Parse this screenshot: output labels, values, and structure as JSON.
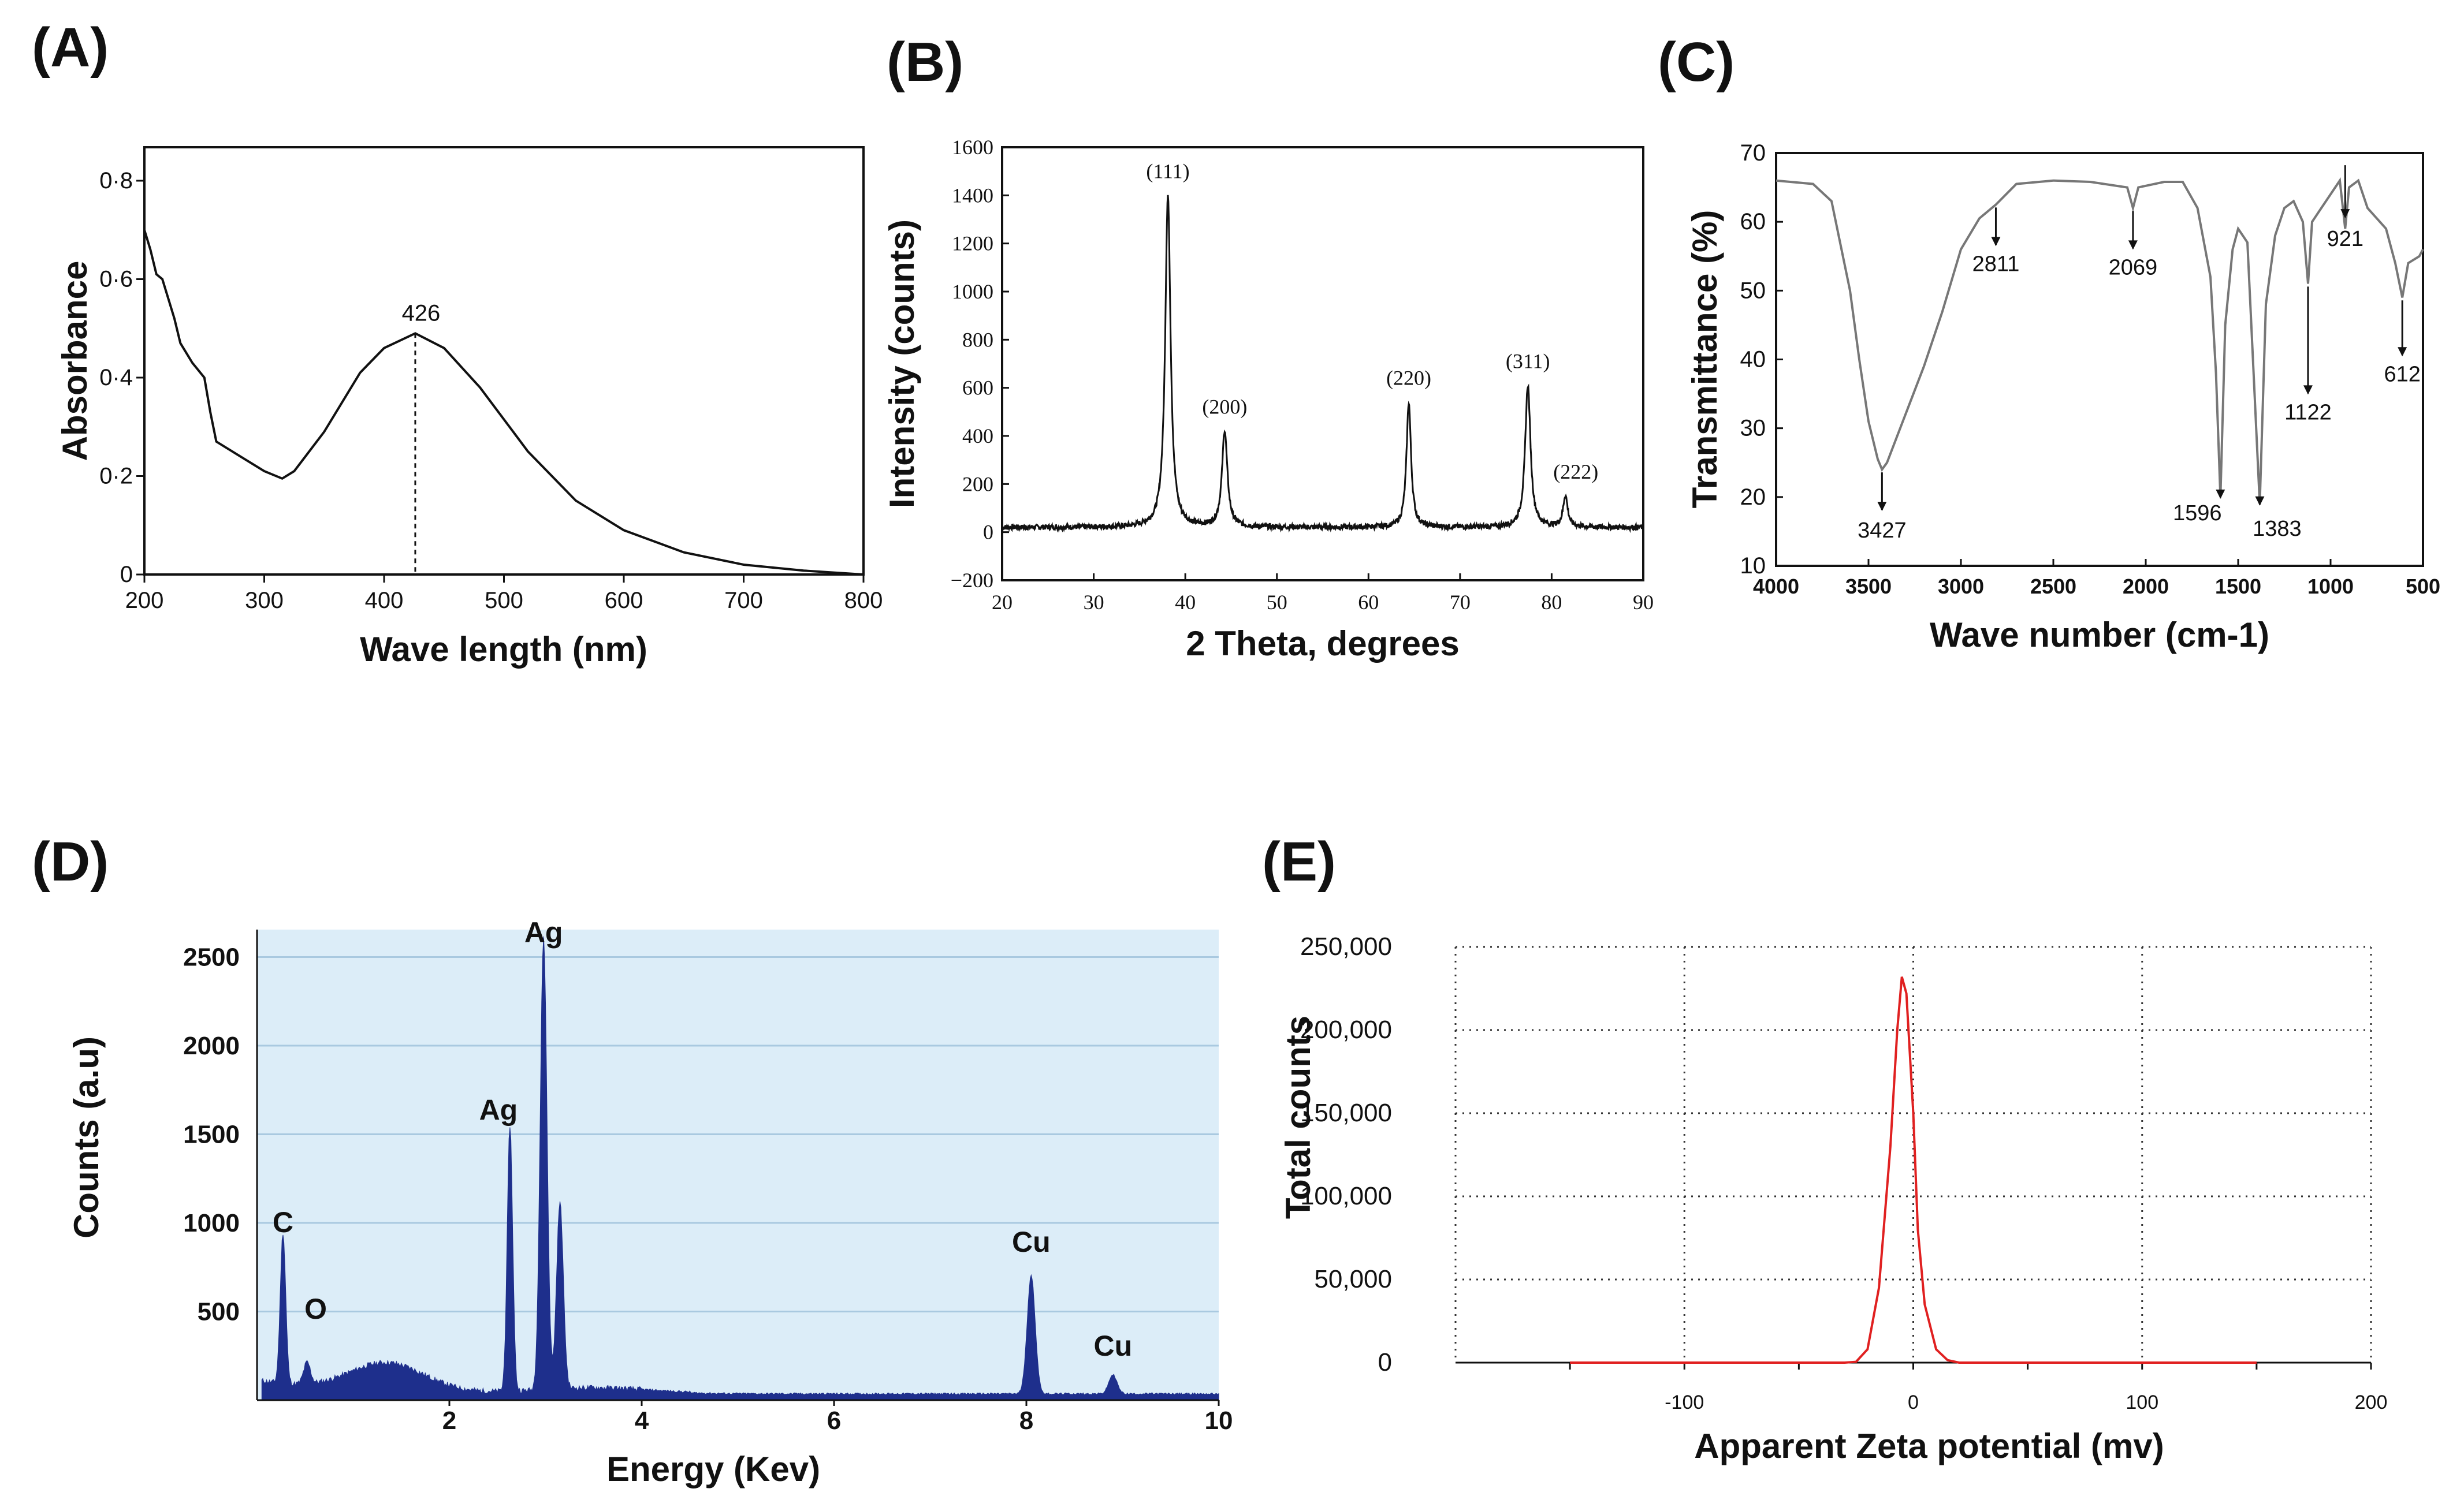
{
  "chart_data": [
    {
      "panel": "(A)",
      "type": "line",
      "xlabel": "Wave length (nm)",
      "ylabel": "Absorbance",
      "xlim": [
        200,
        800
      ],
      "ylim": [
        0,
        0.8
      ],
      "x_ticks": [
        "200",
        "300",
        "400",
        "500",
        "600",
        "700",
        "800"
      ],
      "y_ticks": [
        "0",
        "0·2",
        "0·4",
        "0·6",
        "0·8"
      ],
      "series": [
        {
          "x": [
            200,
            205,
            210,
            215,
            220,
            225,
            230,
            240,
            250,
            255,
            260,
            280,
            300,
            315,
            325,
            350,
            380,
            400,
            426,
            450,
            480,
            520,
            560,
            600,
            650,
            700,
            750,
            800
          ],
          "y": [
            0.7,
            0.66,
            0.61,
            0.6,
            0.56,
            0.52,
            0.47,
            0.43,
            0.4,
            0.33,
            0.27,
            0.24,
            0.21,
            0.195,
            0.21,
            0.29,
            0.41,
            0.46,
            0.49,
            0.46,
            0.38,
            0.25,
            0.15,
            0.09,
            0.045,
            0.02,
            0.008,
            0.0
          ]
        }
      ],
      "annotations": [
        {
          "x": 426,
          "y": 0.49,
          "label": "426"
        }
      ],
      "grid": false
    },
    {
      "panel": "(B)",
      "type": "line",
      "xlabel": "2 Theta, degrees",
      "ylabel": "Intensity (counts)",
      "xlim": [
        20,
        90
      ],
      "ylim": [
        -200,
        1600
      ],
      "x_ticks": [
        "20",
        "30",
        "40",
        "50",
        "60",
        "70",
        "80",
        "90"
      ],
      "y_ticks": [
        "−200",
        "0",
        "200",
        "400",
        "600",
        "800",
        "1000",
        "1200",
        "1400",
        "1600"
      ],
      "baseline": 20,
      "peaks": [
        {
          "x": 38.1,
          "y": 1400,
          "width": 0.35,
          "label": "(111)"
        },
        {
          "x": 44.3,
          "y": 420,
          "width": 0.35,
          "label": "(200)"
        },
        {
          "x": 64.4,
          "y": 540,
          "width": 0.3,
          "label": "(220)"
        },
        {
          "x": 77.4,
          "y": 610,
          "width": 0.35,
          "label": "(311)"
        },
        {
          "x": 81.5,
          "y": 150,
          "width": 0.3,
          "label": "(222)"
        }
      ],
      "grid": false
    },
    {
      "panel": "(C)",
      "type": "line",
      "xlabel": "Wave number (cm-1)",
      "ylabel": "Transmittance (%)",
      "xlim": [
        4000,
        500
      ],
      "ylim": [
        10,
        70
      ],
      "x_ticks": [
        "4000",
        "3500",
        "3000",
        "2500",
        "2000",
        "1500",
        "1000",
        "500"
      ],
      "y_ticks": [
        "10",
        "20",
        "30",
        "40",
        "50",
        "60",
        "70"
      ],
      "series": [
        {
          "x": [
            4000,
            3800,
            3700,
            3600,
            3550,
            3500,
            3450,
            3427,
            3400,
            3300,
            3200,
            3100,
            3000,
            2900,
            2811,
            2700,
            2500,
            2300,
            2100,
            2069,
            2040,
            1900,
            1800,
            1720,
            1650,
            1620,
            1596,
            1570,
            1530,
            1500,
            1450,
            1420,
            1383,
            1350,
            1300,
            1250,
            1200,
            1150,
            1122,
            1100,
            1050,
            1000,
            950,
            921,
            900,
            850,
            800,
            700,
            650,
            612,
            580,
            520,
            500
          ],
          "y": [
            66,
            65.5,
            63,
            50,
            40,
            31,
            25.5,
            24,
            25,
            32,
            39,
            47,
            56,
            60.5,
            62.5,
            65.5,
            66,
            65.8,
            65,
            62,
            65,
            65.8,
            65.8,
            62,
            52,
            38,
            20,
            45,
            56,
            59,
            57,
            40,
            19,
            48,
            58,
            62,
            63,
            60,
            51,
            60,
            62,
            64,
            66,
            59,
            65,
            66,
            62,
            59,
            54,
            49,
            54,
            55,
            56
          ]
        }
      ],
      "annotations": [
        {
          "x": 3427,
          "label": "3427"
        },
        {
          "x": 2811,
          "label": "2811"
        },
        {
          "x": 2069,
          "label": "2069"
        },
        {
          "x": 1596,
          "label": "1596"
        },
        {
          "x": 1383,
          "label": "1383"
        },
        {
          "x": 1122,
          "label": "1122"
        },
        {
          "x": 921,
          "label": "921"
        },
        {
          "x": 612,
          "label": "612"
        }
      ],
      "grid": false
    },
    {
      "panel": "(D)",
      "type": "area",
      "xlabel": "Energy (Kev)",
      "ylabel": "Counts (a.u)",
      "xlim": [
        0,
        10
      ],
      "ylim": [
        0,
        2600
      ],
      "x_ticks": [
        "2",
        "4",
        "6",
        "8",
        "10"
      ],
      "y_ticks": [
        "500",
        "1000",
        "1500",
        "2000",
        "2500"
      ],
      "background_color": "#dcedf8",
      "fill_color": "#1e2f8c",
      "peaks": [
        {
          "x": 0.27,
          "y": 850,
          "width": 0.04,
          "label": "C"
        },
        {
          "x": 0.52,
          "y": 120,
          "width": 0.05,
          "label": "O"
        },
        {
          "x": 2.63,
          "y": 1500,
          "width": 0.04,
          "label": "Ag"
        },
        {
          "x": 2.98,
          "y": 2550,
          "width": 0.05,
          "label": "Ag"
        },
        {
          "x": 3.15,
          "y": 1050,
          "width": 0.05,
          "label": ""
        },
        {
          "x": 8.05,
          "y": 740,
          "width": 0.06,
          "label": "Cu"
        },
        {
          "x": 8.9,
          "y": 120,
          "width": 0.06,
          "label": "Cu"
        }
      ],
      "grid": "horizontal"
    },
    {
      "panel": "(E)",
      "type": "line",
      "xlabel": "Apparent Zeta potential (mv)",
      "ylabel": "Total counts",
      "xlim": [
        -200,
        200
      ],
      "ylim": [
        0,
        250000
      ],
      "x_ticks": [
        "-100",
        "0",
        "100",
        "200"
      ],
      "y_ticks": [
        "0",
        "50,000",
        "100,000",
        "150,000",
        "200,000",
        "250,000"
      ],
      "series": [
        {
          "color": "#e02020",
          "x": [
            -150,
            -30,
            -25,
            -20,
            -15,
            -10,
            -7,
            -5,
            -3,
            0,
            2,
            5,
            10,
            15,
            20,
            30,
            150
          ],
          "y": [
            0,
            0,
            500,
            8000,
            45000,
            130000,
            200000,
            232000,
            222000,
            150000,
            80000,
            35000,
            8000,
            1500,
            0,
            0,
            0
          ]
        }
      ],
      "grid": "dotted"
    }
  ],
  "labels": {
    "A": "(A)",
    "B": "(B)",
    "C": "(C)",
    "D": "(D)",
    "E": "(E)"
  }
}
